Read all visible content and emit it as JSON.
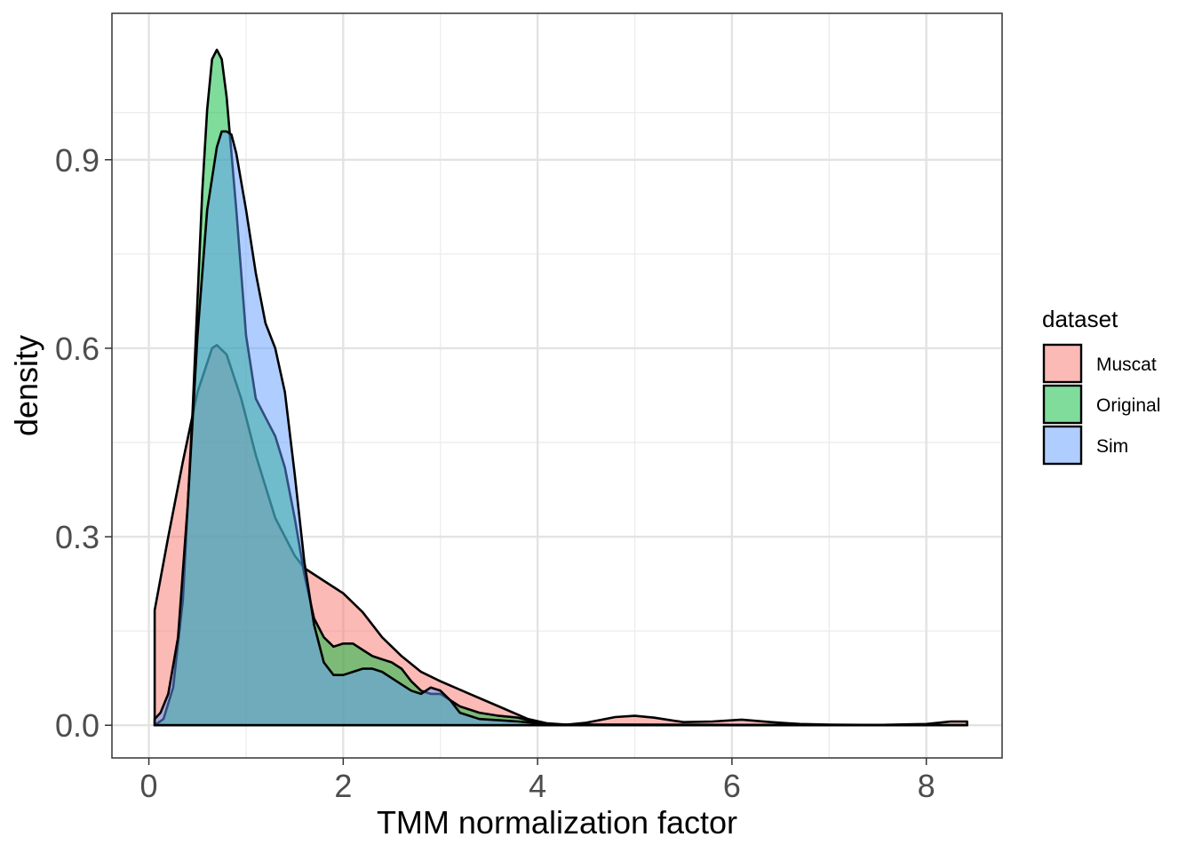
{
  "chart_data": {
    "type": "area",
    "xlabel": "TMM normalization factor",
    "ylabel": "density",
    "xlim": [
      -0.38,
      8.78
    ],
    "ylim": [
      -0.052,
      1.133
    ],
    "x_ticks": [
      0,
      2,
      4,
      6,
      8
    ],
    "x_tick_labels": [
      "0",
      "2",
      "4",
      "6",
      "8"
    ],
    "y_ticks": [
      0.0,
      0.3,
      0.6,
      0.9
    ],
    "y_tick_labels": [
      "0.0",
      "0.3",
      "0.6",
      "0.9"
    ],
    "grid": true,
    "legend": {
      "title": "dataset",
      "placement": "right"
    },
    "series": [
      {
        "name": "Muscat",
        "color": "#F8766D",
        "x": [
          0.06,
          0.06,
          0.2,
          0.35,
          0.5,
          0.65,
          0.7,
          0.8,
          0.95,
          1.1,
          1.3,
          1.5,
          1.6,
          1.8,
          2.0,
          2.2,
          2.4,
          2.6,
          2.8,
          3.0,
          3.3,
          3.6,
          3.9,
          4.1,
          4.3,
          4.5,
          4.8,
          5.0,
          5.2,
          5.5,
          5.8,
          6.1,
          6.4,
          6.7,
          7.0,
          7.5,
          8.0,
          8.25,
          8.42
        ],
        "y": [
          0,
          0.183,
          0.3,
          0.42,
          0.53,
          0.6,
          0.605,
          0.59,
          0.52,
          0.43,
          0.33,
          0.27,
          0.25,
          0.23,
          0.21,
          0.18,
          0.14,
          0.11,
          0.085,
          0.07,
          0.05,
          0.03,
          0.01,
          0.003,
          0.001,
          0.004,
          0.013,
          0.015,
          0.012,
          0.005,
          0.006,
          0.009,
          0.005,
          0.002,
          0.001,
          0.0005,
          0.002,
          0.006,
          0.006
        ]
      },
      {
        "name": "Original",
        "color": "#00BA38",
        "x": [
          0.06,
          0.15,
          0.25,
          0.35,
          0.45,
          0.55,
          0.6,
          0.65,
          0.7,
          0.75,
          0.8,
          0.9,
          1.0,
          1.1,
          1.2,
          1.3,
          1.4,
          1.5,
          1.6,
          1.7,
          1.8,
          1.9,
          2.0,
          2.1,
          2.2,
          2.3,
          2.4,
          2.5,
          2.6,
          2.7,
          2.8,
          2.9,
          3.0,
          3.2,
          3.4,
          3.6,
          3.8,
          4.0,
          4.2,
          8.42
        ],
        "y": [
          0.0,
          0.01,
          0.06,
          0.2,
          0.5,
          0.85,
          0.98,
          1.06,
          1.075,
          1.06,
          1.0,
          0.82,
          0.62,
          0.52,
          0.49,
          0.46,
          0.41,
          0.33,
          0.24,
          0.17,
          0.14,
          0.125,
          0.13,
          0.13,
          0.12,
          0.11,
          0.105,
          0.1,
          0.09,
          0.07,
          0.055,
          0.05,
          0.05,
          0.03,
          0.02,
          0.015,
          0.012,
          0.004,
          0.001,
          0.0
        ]
      },
      {
        "name": "Sim",
        "color": "#619CFF",
        "x": [
          0.06,
          0.12,
          0.2,
          0.3,
          0.4,
          0.5,
          0.6,
          0.7,
          0.75,
          0.8,
          0.85,
          0.9,
          1.0,
          1.1,
          1.2,
          1.3,
          1.4,
          1.5,
          1.6,
          1.7,
          1.8,
          1.9,
          2.0,
          2.1,
          2.2,
          2.3,
          2.4,
          2.5,
          2.6,
          2.7,
          2.8,
          2.9,
          3.0,
          3.1,
          3.2,
          3.4,
          3.6,
          3.8,
          4.0,
          4.2,
          8.42
        ],
        "y": [
          0.01,
          0.02,
          0.05,
          0.14,
          0.35,
          0.62,
          0.82,
          0.92,
          0.945,
          0.945,
          0.94,
          0.91,
          0.82,
          0.72,
          0.64,
          0.6,
          0.53,
          0.4,
          0.26,
          0.16,
          0.1,
          0.08,
          0.08,
          0.085,
          0.09,
          0.09,
          0.085,
          0.075,
          0.065,
          0.055,
          0.05,
          0.06,
          0.055,
          0.04,
          0.02,
          0.01,
          0.008,
          0.006,
          0.003,
          0.001,
          0.0
        ]
      }
    ]
  }
}
